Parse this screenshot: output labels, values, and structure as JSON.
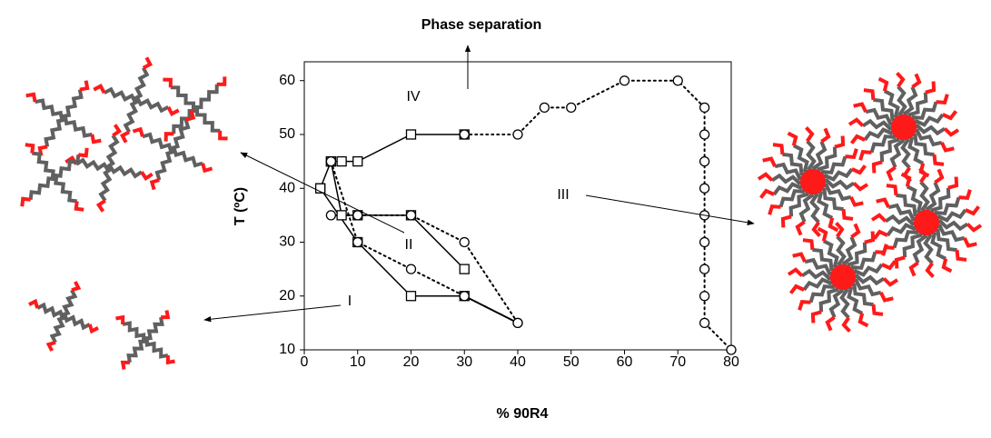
{
  "chart_data": {
    "type": "scatter",
    "x_label": "% 90R4",
    "y_label": "T (ºC)",
    "xlim": [
      0,
      80
    ],
    "ylim": [
      10,
      63.5
    ],
    "xticks": [
      0,
      10,
      20,
      30,
      40,
      50,
      60,
      70,
      80
    ],
    "yticks": [
      10,
      20,
      30,
      40,
      50,
      60
    ],
    "series": [
      {
        "marker": "square",
        "line": "solid",
        "color": "#000000",
        "x": [
          3,
          5,
          7,
          10,
          20,
          30
        ],
        "values": [
          40,
          45,
          45,
          45,
          50,
          50
        ]
      },
      {
        "marker": "circle",
        "line": "dotted",
        "color": "#000000",
        "x": [
          30,
          40,
          45,
          50,
          60,
          70,
          75,
          75,
          75,
          75,
          75,
          75,
          75,
          75,
          75,
          80
        ],
        "values": [
          50,
          50,
          55,
          55,
          60,
          60,
          55,
          50,
          45,
          40,
          35,
          30,
          25,
          20,
          15,
          10
        ]
      },
      {
        "marker": "square",
        "line": "solid",
        "color": "#000000",
        "x": [
          5,
          7,
          10,
          20,
          30
        ],
        "values": [
          45,
          35,
          35,
          35,
          25
        ]
      },
      {
        "marker": "square",
        "line": "solid",
        "color": "#000000",
        "x": [
          3,
          10,
          20,
          30
        ],
        "values": [
          40,
          30,
          20,
          20
        ]
      },
      {
        "marker": "circle",
        "line": "dotted",
        "color": "#000000",
        "x": [
          5,
          10,
          20,
          30,
          40
        ],
        "values": [
          35,
          35,
          35,
          30,
          15
        ]
      },
      {
        "marker": "circle",
        "line": "dotted",
        "color": "#000000",
        "x": [
          5,
          10,
          20,
          30,
          40
        ],
        "values": [
          45,
          30,
          25,
          20,
          15
        ]
      },
      {
        "marker": "none",
        "line": "dotted",
        "color": "#000000",
        "x": [
          30,
          40
        ],
        "values": [
          20,
          15
        ]
      }
    ],
    "annotations": [
      "Phase separation",
      "IV",
      "II",
      "III",
      "I"
    ]
  }
}
